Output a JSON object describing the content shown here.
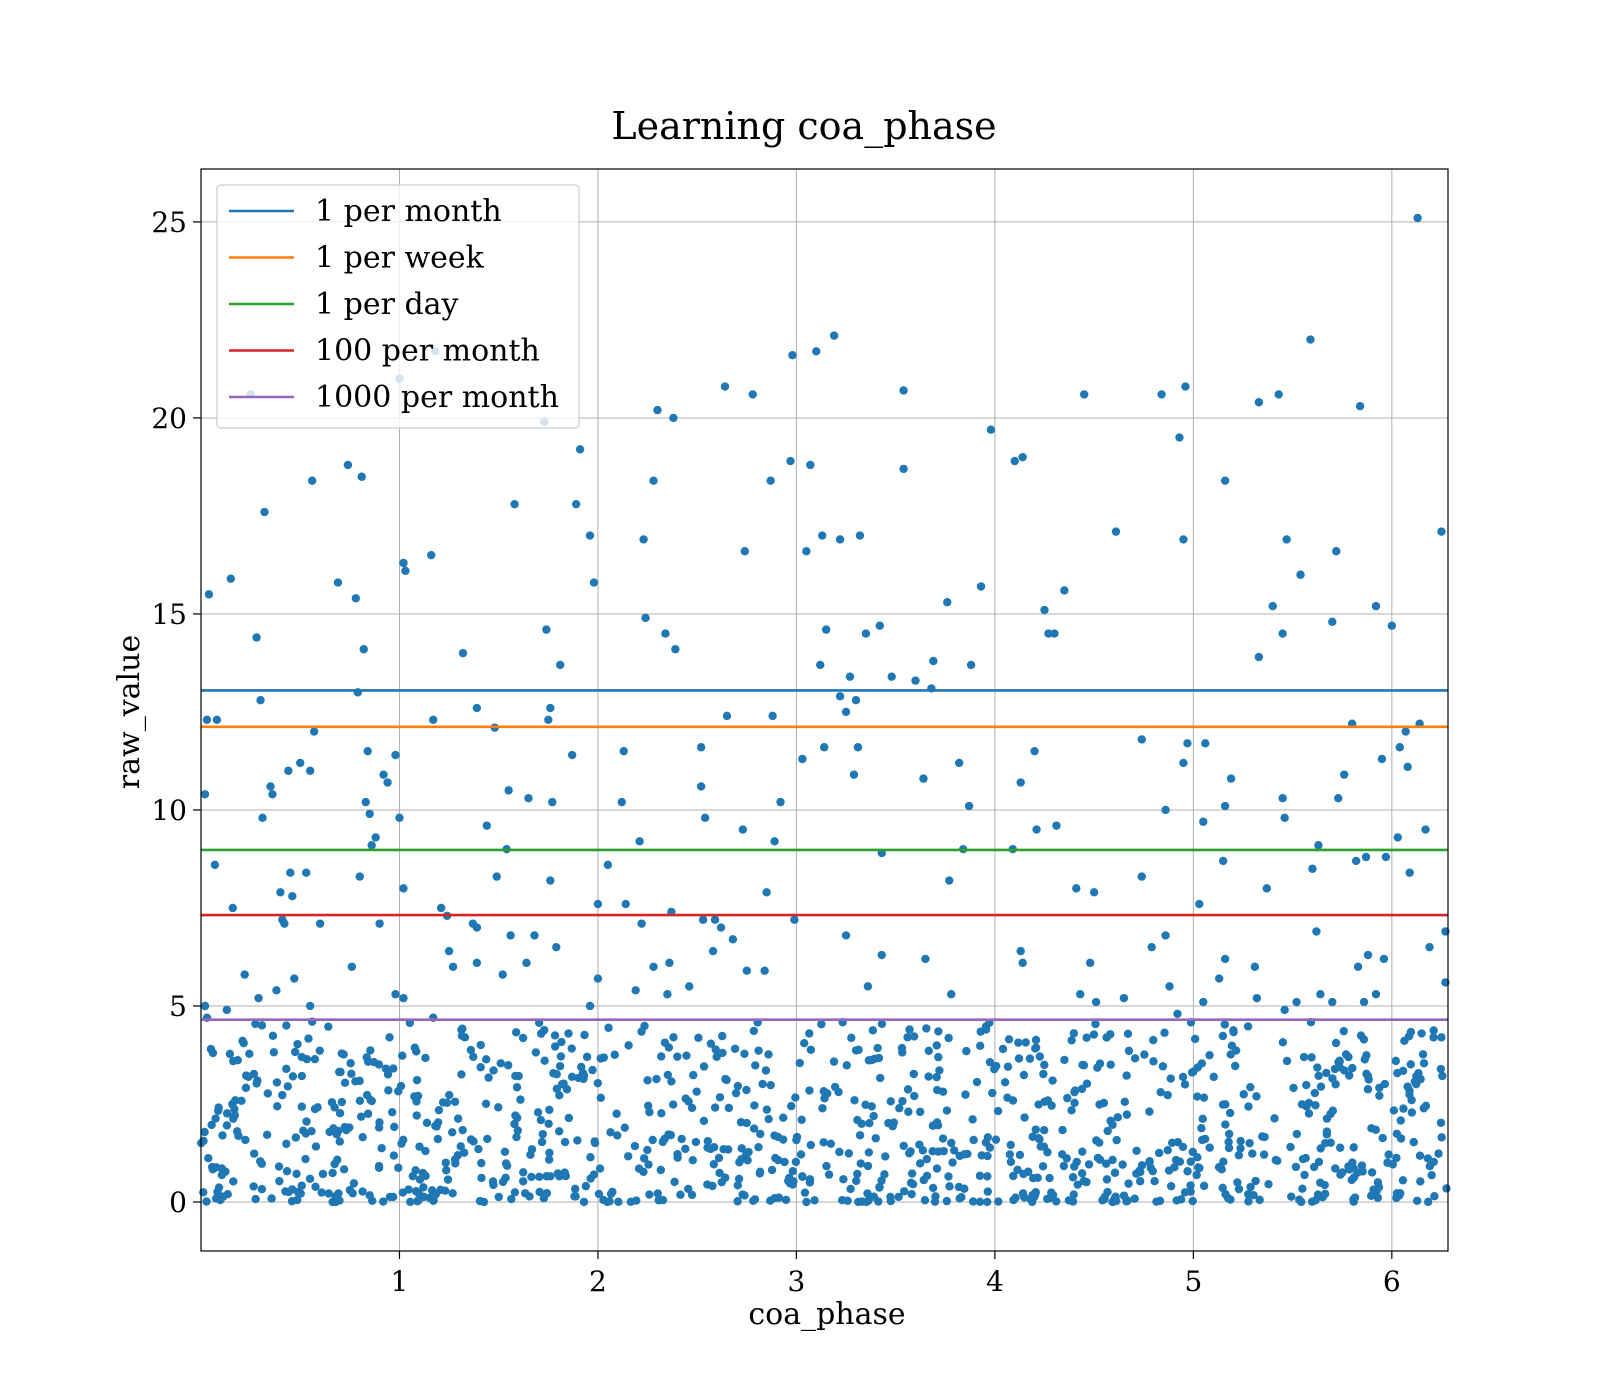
{
  "chart_data": {
    "type": "scatter",
    "title": "Learning coa_phase",
    "xlabel": "coa_phase",
    "ylabel": "raw_value",
    "xlim": [
      0.0,
      6.283
    ],
    "ylim": [
      -1.25,
      26.35
    ],
    "xticks": [
      1,
      2,
      3,
      4,
      5,
      6
    ],
    "xtick_labels": [
      "1",
      "2",
      "3",
      "4",
      "5",
      "6"
    ],
    "yticks": [
      0,
      5,
      10,
      15,
      20,
      25
    ],
    "ytick_labels": [
      "0",
      "5",
      "10",
      "15",
      "20",
      "25"
    ],
    "grid": true,
    "legend_position": "top-left",
    "point_color": "#1f77b4",
    "hlines": [
      {
        "name": "1 per month",
        "y": 13.05,
        "color": "#1f77b4"
      },
      {
        "name": "1 per week",
        "y": 12.12,
        "color": "#ff7f0e"
      },
      {
        "name": "1 per day",
        "y": 8.98,
        "color": "#2ca02c"
      },
      {
        "name": "100 per month",
        "y": 7.32,
        "color": "#d62728"
      },
      {
        "name": "1000 per month",
        "y": 4.65,
        "color": "#9467bd"
      }
    ],
    "points_high": [
      [
        0.02,
        10.4
      ],
      [
        0.03,
        12.3
      ],
      [
        0.04,
        15.5
      ],
      [
        0.07,
        8.6
      ],
      [
        0.08,
        12.3
      ],
      [
        0.15,
        15.9
      ],
      [
        0.16,
        7.5
      ],
      [
        0.28,
        14.4
      ],
      [
        0.3,
        12.8
      ],
      [
        0.31,
        9.8
      ],
      [
        0.32,
        17.6
      ],
      [
        0.35,
        10.6
      ],
      [
        0.36,
        10.4
      ],
      [
        0.4,
        7.9
      ],
      [
        0.42,
        7.1
      ],
      [
        0.44,
        11.0
      ],
      [
        0.45,
        8.4
      ],
      [
        0.46,
        7.8
      ],
      [
        0.5,
        11.2
      ],
      [
        0.53,
        8.4
      ],
      [
        0.55,
        11.0
      ],
      [
        0.57,
        12.0
      ],
      [
        0.56,
        18.4
      ],
      [
        0.6,
        7.1
      ],
      [
        0.69,
        15.8
      ],
      [
        0.74,
        18.8
      ],
      [
        0.78,
        15.4
      ],
      [
        0.79,
        13.0
      ],
      [
        0.8,
        8.3
      ],
      [
        0.81,
        18.5
      ],
      [
        0.82,
        14.1
      ],
      [
        0.83,
        10.2
      ],
      [
        0.84,
        11.5
      ],
      [
        0.85,
        9.9
      ],
      [
        0.86,
        9.1
      ],
      [
        0.88,
        9.3
      ],
      [
        0.9,
        7.1
      ],
      [
        0.92,
        10.9
      ],
      [
        0.94,
        10.7
      ],
      [
        0.98,
        11.4
      ],
      [
        1.0,
        9.8
      ],
      [
        1.02,
        16.3
      ],
      [
        1.03,
        16.1
      ],
      [
        1.02,
        8.0
      ],
      [
        1.16,
        16.5
      ],
      [
        1.17,
        12.3
      ],
      [
        1.18,
        21.7
      ],
      [
        1.21,
        7.5
      ],
      [
        1.24,
        7.3
      ],
      [
        1.32,
        14.0
      ],
      [
        1.37,
        7.1
      ],
      [
        1.39,
        12.6
      ],
      [
        1.39,
        7.0
      ],
      [
        1.44,
        9.6
      ],
      [
        1.48,
        12.1
      ],
      [
        1.49,
        8.3
      ],
      [
        1.55,
        10.5
      ],
      [
        1.54,
        9.0
      ],
      [
        1.58,
        17.8
      ],
      [
        1.65,
        10.3
      ],
      [
        1.74,
        14.6
      ],
      [
        1.75,
        12.3
      ],
      [
        1.76,
        12.6
      ],
      [
        1.77,
        10.2
      ],
      [
        1.76,
        8.2
      ],
      [
        1.81,
        13.7
      ],
      [
        1.87,
        11.4
      ],
      [
        1.89,
        17.8
      ],
      [
        1.91,
        19.2
      ],
      [
        1.96,
        17.0
      ],
      [
        1.98,
        15.8
      ],
      [
        2.0,
        7.6
      ],
      [
        2.05,
        8.6
      ],
      [
        2.12,
        10.2
      ],
      [
        2.13,
        11.5
      ],
      [
        2.14,
        7.6
      ],
      [
        2.21,
        9.2
      ],
      [
        2.22,
        7.1
      ],
      [
        2.23,
        16.9
      ],
      [
        2.24,
        14.9
      ],
      [
        2.28,
        18.4
      ],
      [
        2.3,
        20.2
      ],
      [
        2.34,
        14.5
      ],
      [
        2.38,
        20.0
      ],
      [
        2.39,
        14.1
      ],
      [
        2.37,
        7.4
      ],
      [
        2.52,
        11.6
      ],
      [
        2.52,
        10.6
      ],
      [
        2.54,
        9.8
      ],
      [
        2.53,
        7.2
      ],
      [
        2.59,
        7.2
      ],
      [
        2.62,
        7.0
      ],
      [
        2.64,
        20.8
      ],
      [
        2.65,
        12.4
      ],
      [
        2.73,
        9.5
      ],
      [
        2.74,
        16.6
      ],
      [
        2.78,
        20.6
      ],
      [
        2.85,
        7.9
      ],
      [
        2.87,
        18.4
      ],
      [
        2.88,
        12.4
      ],
      [
        2.89,
        9.2
      ],
      [
        2.92,
        10.2
      ],
      [
        2.97,
        18.9
      ],
      [
        2.98,
        21.6
      ],
      [
        2.99,
        7.2
      ],
      [
        3.03,
        11.3
      ],
      [
        3.05,
        16.6
      ],
      [
        3.07,
        18.8
      ],
      [
        3.1,
        21.7
      ],
      [
        3.12,
        13.7
      ],
      [
        3.13,
        17.0
      ],
      [
        3.14,
        11.6
      ],
      [
        3.15,
        14.6
      ],
      [
        3.19,
        22.1
      ],
      [
        3.22,
        12.9
      ],
      [
        3.22,
        16.9
      ],
      [
        3.25,
        12.5
      ],
      [
        3.27,
        13.4
      ],
      [
        3.29,
        10.9
      ],
      [
        3.3,
        12.8
      ],
      [
        3.31,
        11.6
      ],
      [
        3.32,
        17.0
      ],
      [
        3.35,
        14.5
      ],
      [
        3.42,
        14.7
      ],
      [
        3.43,
        8.9
      ],
      [
        3.48,
        13.4
      ],
      [
        3.54,
        18.7
      ],
      [
        3.54,
        20.7
      ],
      [
        3.6,
        13.3
      ],
      [
        3.64,
        10.8
      ],
      [
        3.69,
        13.8
      ],
      [
        3.68,
        13.1
      ],
      [
        3.76,
        15.3
      ],
      [
        3.77,
        8.2
      ],
      [
        3.82,
        11.2
      ],
      [
        3.84,
        9.0
      ],
      [
        3.87,
        10.1
      ],
      [
        3.88,
        13.7
      ],
      [
        3.93,
        15.7
      ],
      [
        3.98,
        19.7
      ],
      [
        4.09,
        9.0
      ],
      [
        4.1,
        18.9
      ],
      [
        4.14,
        19.0
      ],
      [
        4.13,
        10.7
      ],
      [
        4.2,
        11.5
      ],
      [
        4.21,
        9.5
      ],
      [
        4.25,
        15.1
      ],
      [
        4.27,
        14.5
      ],
      [
        4.3,
        14.5
      ],
      [
        4.31,
        9.6
      ],
      [
        4.35,
        15.6
      ],
      [
        4.41,
        8.0
      ],
      [
        4.45,
        20.6
      ],
      [
        4.5,
        7.9
      ],
      [
        4.61,
        17.1
      ],
      [
        4.74,
        11.8
      ],
      [
        4.74,
        8.3
      ],
      [
        4.84,
        20.6
      ],
      [
        4.86,
        10.0
      ],
      [
        4.93,
        19.5
      ],
      [
        4.95,
        16.9
      ],
      [
        4.96,
        20.8
      ],
      [
        4.95,
        11.2
      ],
      [
        4.97,
        11.7
      ],
      [
        5.03,
        7.6
      ],
      [
        5.06,
        11.7
      ],
      [
        5.05,
        9.7
      ],
      [
        5.15,
        8.7
      ],
      [
        5.16,
        18.4
      ],
      [
        5.16,
        10.1
      ],
      [
        5.19,
        10.8
      ],
      [
        5.33,
        13.9
      ],
      [
        5.33,
        20.4
      ],
      [
        5.37,
        8.0
      ],
      [
        5.4,
        15.2
      ],
      [
        5.43,
        20.6
      ],
      [
        5.45,
        14.5
      ],
      [
        5.45,
        10.3
      ],
      [
        5.46,
        9.8
      ],
      [
        5.47,
        16.9
      ],
      [
        5.54,
        16.0
      ],
      [
        5.59,
        22.0
      ],
      [
        5.6,
        8.5
      ],
      [
        5.62,
        6.9
      ],
      [
        5.63,
        9.1
      ],
      [
        5.7,
        14.8
      ],
      [
        5.72,
        16.6
      ],
      [
        5.73,
        10.3
      ],
      [
        5.76,
        10.9
      ],
      [
        5.8,
        12.2
      ],
      [
        5.82,
        8.7
      ],
      [
        5.84,
        20.3
      ],
      [
        5.87,
        8.8
      ],
      [
        5.92,
        15.2
      ],
      [
        5.95,
        11.3
      ],
      [
        5.97,
        8.8
      ],
      [
        6.0,
        14.7
      ],
      [
        6.03,
        9.3
      ],
      [
        6.04,
        11.6
      ],
      [
        6.07,
        12.0
      ],
      [
        6.08,
        11.1
      ],
      [
        6.09,
        8.4
      ],
      [
        6.13,
        25.1
      ],
      [
        6.14,
        12.2
      ],
      [
        6.17,
        9.5
      ],
      [
        6.19,
        6.5
      ],
      [
        6.25,
        17.1
      ],
      [
        6.27,
        6.9
      ],
      [
        0.25,
        20.6
      ],
      [
        1.0,
        21.0
      ],
      [
        1.73,
        19.9
      ]
    ],
    "points_mid": [
      [
        0.02,
        5.0
      ],
      [
        0.03,
        4.7
      ],
      [
        0.05,
        3.9
      ],
      [
        0.06,
        3.8
      ],
      [
        0.13,
        4.9
      ],
      [
        0.22,
        5.8
      ],
      [
        0.29,
        5.2
      ],
      [
        0.38,
        5.4
      ],
      [
        0.41,
        7.2
      ],
      [
        0.43,
        4.5
      ],
      [
        0.47,
        5.7
      ],
      [
        0.55,
        5.0
      ],
      [
        0.56,
        4.6
      ],
      [
        0.76,
        6.0
      ],
      [
        0.95,
        4.2
      ],
      [
        0.98,
        5.3
      ],
      [
        1.02,
        5.2
      ],
      [
        1.17,
        4.7
      ],
      [
        1.25,
        6.4
      ],
      [
        1.27,
        6.0
      ],
      [
        1.33,
        4.2
      ],
      [
        1.39,
        6.1
      ],
      [
        1.52,
        5.8
      ],
      [
        1.56,
        6.8
      ],
      [
        1.64,
        6.1
      ],
      [
        1.68,
        6.8
      ],
      [
        1.79,
        6.5
      ],
      [
        1.96,
        5.0
      ],
      [
        2.0,
        5.7
      ],
      [
        2.19,
        5.4
      ],
      [
        2.28,
        6.0
      ],
      [
        2.36,
        6.1
      ],
      [
        2.35,
        5.3
      ],
      [
        2.46,
        5.5
      ],
      [
        2.58,
        6.4
      ],
      [
        2.68,
        6.7
      ],
      [
        2.75,
        5.9
      ],
      [
        2.84,
        5.9
      ],
      [
        3.25,
        6.8
      ],
      [
        3.36,
        5.5
      ],
      [
        3.43,
        6.3
      ],
      [
        3.57,
        4.4
      ],
      [
        3.65,
        6.2
      ],
      [
        3.78,
        5.3
      ],
      [
        4.13,
        6.4
      ],
      [
        4.14,
        6.1
      ],
      [
        4.43,
        5.3
      ],
      [
        4.48,
        6.1
      ],
      [
        4.51,
        5.1
      ],
      [
        4.65,
        5.2
      ],
      [
        4.79,
        6.5
      ],
      [
        4.86,
        6.8
      ],
      [
        4.88,
        5.5
      ],
      [
        4.92,
        4.8
      ],
      [
        5.05,
        5.1
      ],
      [
        5.13,
        5.7
      ],
      [
        5.16,
        6.2
      ],
      [
        5.31,
        6.0
      ],
      [
        5.32,
        5.2
      ],
      [
        5.46,
        4.9
      ],
      [
        5.52,
        5.1
      ],
      [
        5.64,
        5.3
      ],
      [
        5.7,
        5.1
      ],
      [
        5.83,
        6.0
      ],
      [
        5.86,
        5.1
      ],
      [
        5.88,
        6.3
      ],
      [
        5.92,
        5.3
      ],
      [
        5.96,
        6.2
      ],
      [
        6.02,
        3.6
      ],
      [
        6.15,
        4.3
      ],
      [
        6.21,
        4.2
      ],
      [
        6.25,
        4.2
      ],
      [
        6.27,
        5.6
      ]
    ],
    "dense_region": {
      "x_range": [
        0.0,
        6.28
      ],
      "y_range": [
        0.0,
        4.6
      ],
      "count": 1050
    }
  },
  "legend": {
    "items": [
      "1 per month",
      "1 per week",
      "1 per day",
      "100 per month",
      "1000 per month"
    ]
  }
}
